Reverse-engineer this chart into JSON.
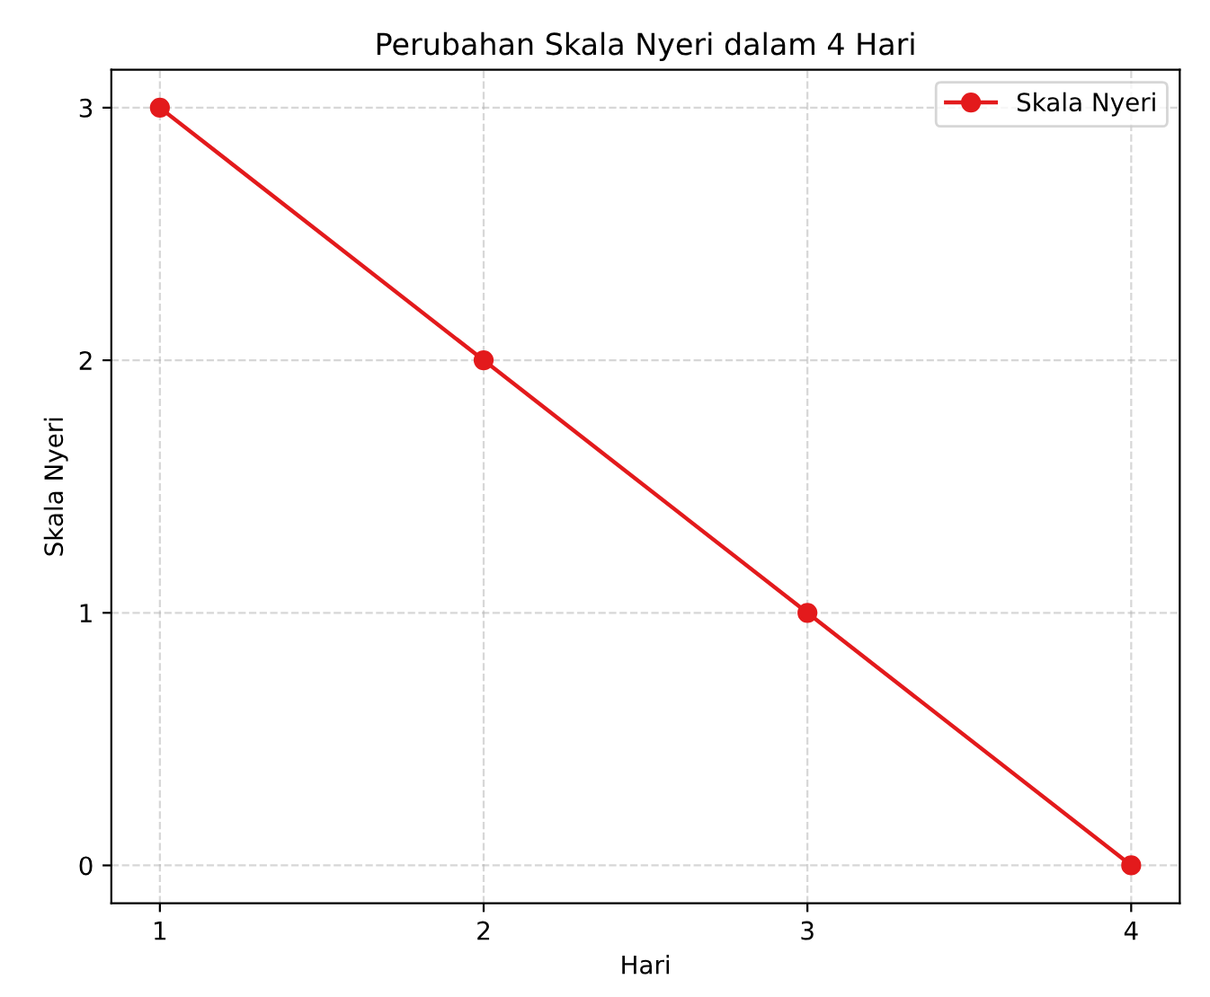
{
  "chart_data": {
    "type": "line",
    "title": "Perubahan Skala Nyeri dalam 4 Hari",
    "xlabel": "Hari",
    "ylabel": "Skala Nyeri",
    "x": [
      1,
      2,
      3,
      4
    ],
    "series": [
      {
        "name": "Skala Nyeri",
        "color": "#e31a1c",
        "values": [
          3,
          2,
          1,
          0
        ]
      }
    ],
    "xlim": [
      0.85,
      4.15
    ],
    "ylim": [
      -0.15,
      3.15
    ],
    "xticks": [
      1,
      2,
      3,
      4
    ],
    "yticks": [
      0,
      1,
      2,
      3
    ],
    "grid": true,
    "legend": "top right",
    "marker": "circle",
    "line_style": "solid"
  }
}
